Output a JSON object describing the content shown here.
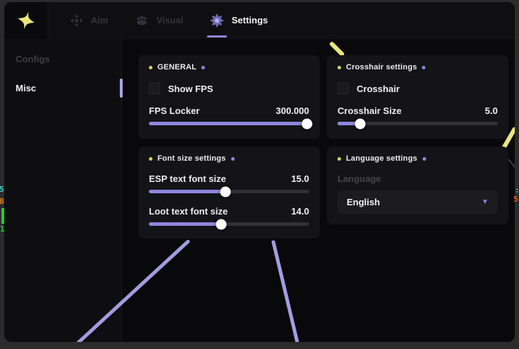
{
  "topbar": {
    "tabs": {
      "aim": {
        "label": "Aim"
      },
      "visual": {
        "label": "Visual"
      },
      "settings": {
        "label": "Settings"
      }
    }
  },
  "sidebar": {
    "configs": {
      "label": "Configs"
    },
    "misc": {
      "label": "Misc"
    }
  },
  "panels": {
    "general": {
      "title": "GENERAL",
      "show_fps": {
        "label": "Show FPS",
        "checked": false
      },
      "fps_locker": {
        "label": "FPS Locker",
        "value": "300.000",
        "percent": 98.5
      }
    },
    "crosshair": {
      "title": "Crosshair settings",
      "crosshair": {
        "label": "Crosshair",
        "checked": false
      },
      "size": {
        "label": "Crosshair Size",
        "value": "5.0",
        "percent": 14
      }
    },
    "fontsize": {
      "title": "Font size settings",
      "esp": {
        "label": "ESP text font size",
        "value": "15.0",
        "percent": 48
      },
      "loot": {
        "label": "Loot text font size",
        "value": "14.0",
        "percent": 45
      }
    },
    "language": {
      "title": "Language settings",
      "label": "Language",
      "selected": "English",
      "chevron": "▼"
    }
  },
  "esp_overlay": {
    "left_distance": "5",
    "left_tag": "B",
    "left_counter": "1",
    "right_marks": ":",
    "right_number": "5"
  },
  "colors": {
    "accent_purple": "#8d87dc",
    "accent_yellow": "#ece67e",
    "esp_teal": "#3fd0c8",
    "esp_orange": "#d07c28",
    "esp_green": "#2fc82f"
  }
}
